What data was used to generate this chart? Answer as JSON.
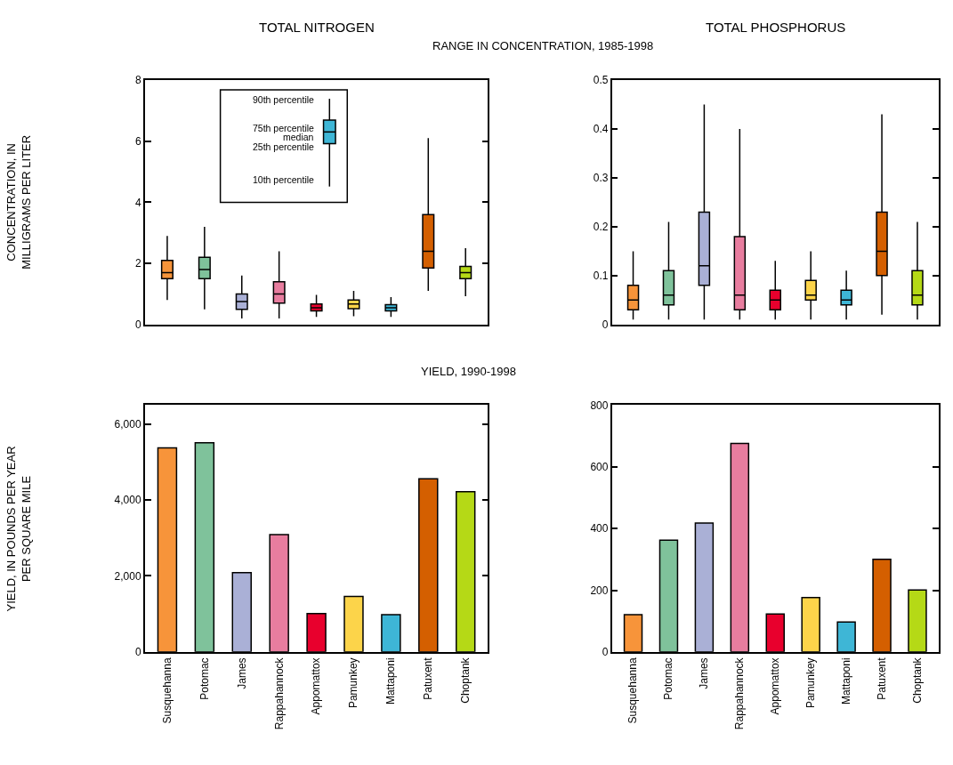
{
  "chart_data": [
    {
      "type": "box",
      "title": "TOTAL NITROGEN",
      "subtitle": "RANGE IN CONCENTRATION, 1985-1998",
      "ylabel": "CONCENTRATION, IN\nMILLIGRAMS PER LITER",
      "categories": [
        null,
        null,
        null,
        null,
        null,
        null,
        null,
        null,
        null
      ],
      "colors": [
        "#f7943a",
        "#7fc29b",
        "#aab0d6",
        "#e87d9f",
        "#e8002d",
        "#fcd44a",
        "#3eb6d6",
        "#d45f00",
        "#b5d916"
      ],
      "boxes": [
        {
          "low": 0.8,
          "q1": 1.5,
          "median": 1.7,
          "q3": 2.1,
          "high": 2.9
        },
        {
          "low": 0.5,
          "q1": 1.5,
          "median": 1.8,
          "q3": 2.2,
          "high": 3.2
        },
        {
          "low": 0.2,
          "q1": 0.5,
          "median": 0.75,
          "q3": 1.0,
          "high": 1.6
        },
        {
          "low": 0.2,
          "q1": 0.7,
          "median": 1.0,
          "q3": 1.4,
          "high": 2.4
        },
        {
          "low": 0.25,
          "q1": 0.45,
          "median": 0.55,
          "q3": 0.67,
          "high": 0.97
        },
        {
          "low": 0.27,
          "q1": 0.52,
          "median": 0.67,
          "q3": 0.8,
          "high": 1.1
        },
        {
          "low": 0.25,
          "q1": 0.45,
          "median": 0.55,
          "q3": 0.65,
          "high": 0.9
        },
        {
          "low": 1.1,
          "q1": 1.85,
          "median": 2.4,
          "q3": 3.6,
          "high": 6.1
        },
        {
          "low": 0.93,
          "q1": 1.5,
          "median": 1.7,
          "q3": 1.9,
          "high": 2.5
        }
      ],
      "ylim": [
        0,
        8
      ],
      "yticks": [
        0,
        2,
        4,
        6,
        8
      ],
      "annotations": [
        "90th percentile",
        "75th percentile",
        "median",
        "25th percentile",
        "10th percentile"
      ]
    },
    {
      "type": "box",
      "title": "TOTAL PHOSPHORUS",
      "categories": [
        null,
        null,
        null,
        null,
        null,
        null,
        null,
        null,
        null
      ],
      "colors": [
        "#f7943a",
        "#7fc29b",
        "#aab0d6",
        "#e87d9f",
        "#e8002d",
        "#fcd44a",
        "#3eb6d6",
        "#d45f00",
        "#b5d916"
      ],
      "boxes": [
        {
          "low": 0.01,
          "q1": 0.03,
          "median": 0.05,
          "q3": 0.08,
          "high": 0.15
        },
        {
          "low": 0.01,
          "q1": 0.04,
          "median": 0.06,
          "q3": 0.11,
          "high": 0.21
        },
        {
          "low": 0.01,
          "q1": 0.08,
          "median": 0.12,
          "q3": 0.23,
          "high": 0.45
        },
        {
          "low": 0.01,
          "q1": 0.03,
          "median": 0.06,
          "q3": 0.18,
          "high": 0.4
        },
        {
          "low": 0.01,
          "q1": 0.03,
          "median": 0.05,
          "q3": 0.07,
          "high": 0.13
        },
        {
          "low": 0.01,
          "q1": 0.05,
          "median": 0.06,
          "q3": 0.09,
          "high": 0.15
        },
        {
          "low": 0.01,
          "q1": 0.04,
          "median": 0.05,
          "q3": 0.07,
          "high": 0.11
        },
        {
          "low": 0.02,
          "q1": 0.1,
          "median": 0.15,
          "q3": 0.23,
          "high": 0.43
        },
        {
          "low": 0.01,
          "q1": 0.04,
          "median": 0.06,
          "q3": 0.11,
          "high": 0.21
        }
      ],
      "ylim": [
        0,
        0.5
      ],
      "yticks": [
        0,
        0.1,
        0.2,
        0.3,
        0.4,
        0.5
      ]
    },
    {
      "type": "bar",
      "subtitle": "YIELD, 1990-1998",
      "ylabel": "YIELD, IN POUNDS PER YEAR\nPER SQUARE MILE",
      "categories": [
        "Susquehanna",
        "Potomac",
        "James",
        "Rappahannock",
        "Appomattox",
        "Pamunkey",
        "Mattaponi",
        "Patuxent",
        "Choptank"
      ],
      "colors": [
        "#f7943a",
        "#7fc29b",
        "#aab0d6",
        "#e87d9f",
        "#e8002d",
        "#fcd44a",
        "#3eb6d6",
        "#d45f00",
        "#b5d916"
      ],
      "values": [
        5370,
        5510,
        2090,
        3090,
        1010,
        1460,
        980,
        4560,
        4220
      ],
      "ylim": [
        0,
        6500
      ],
      "yticks": [
        0,
        {
          "value": 2000,
          "label": "2,000"
        },
        {
          "value": 4000,
          "label": "4,000"
        },
        {
          "value": 6000,
          "label": "6,000"
        }
      ]
    },
    {
      "type": "bar",
      "categories": [
        "Susquehanna",
        "Potomac",
        "James",
        "Rappahannock",
        "Appomattox",
        "Pamunkey",
        "Mattaponi",
        "Patuxent",
        "Choptank"
      ],
      "colors": [
        "#f7943a",
        "#7fc29b",
        "#aab0d6",
        "#e87d9f",
        "#e8002d",
        "#fcd44a",
        "#3eb6d6",
        "#d45f00",
        "#b5d916"
      ],
      "values": [
        121,
        362,
        418,
        676,
        123,
        176,
        97,
        300,
        201
      ],
      "ylim": [
        0,
        800
      ],
      "yticks": [
        0,
        200,
        400,
        600,
        800
      ]
    }
  ]
}
